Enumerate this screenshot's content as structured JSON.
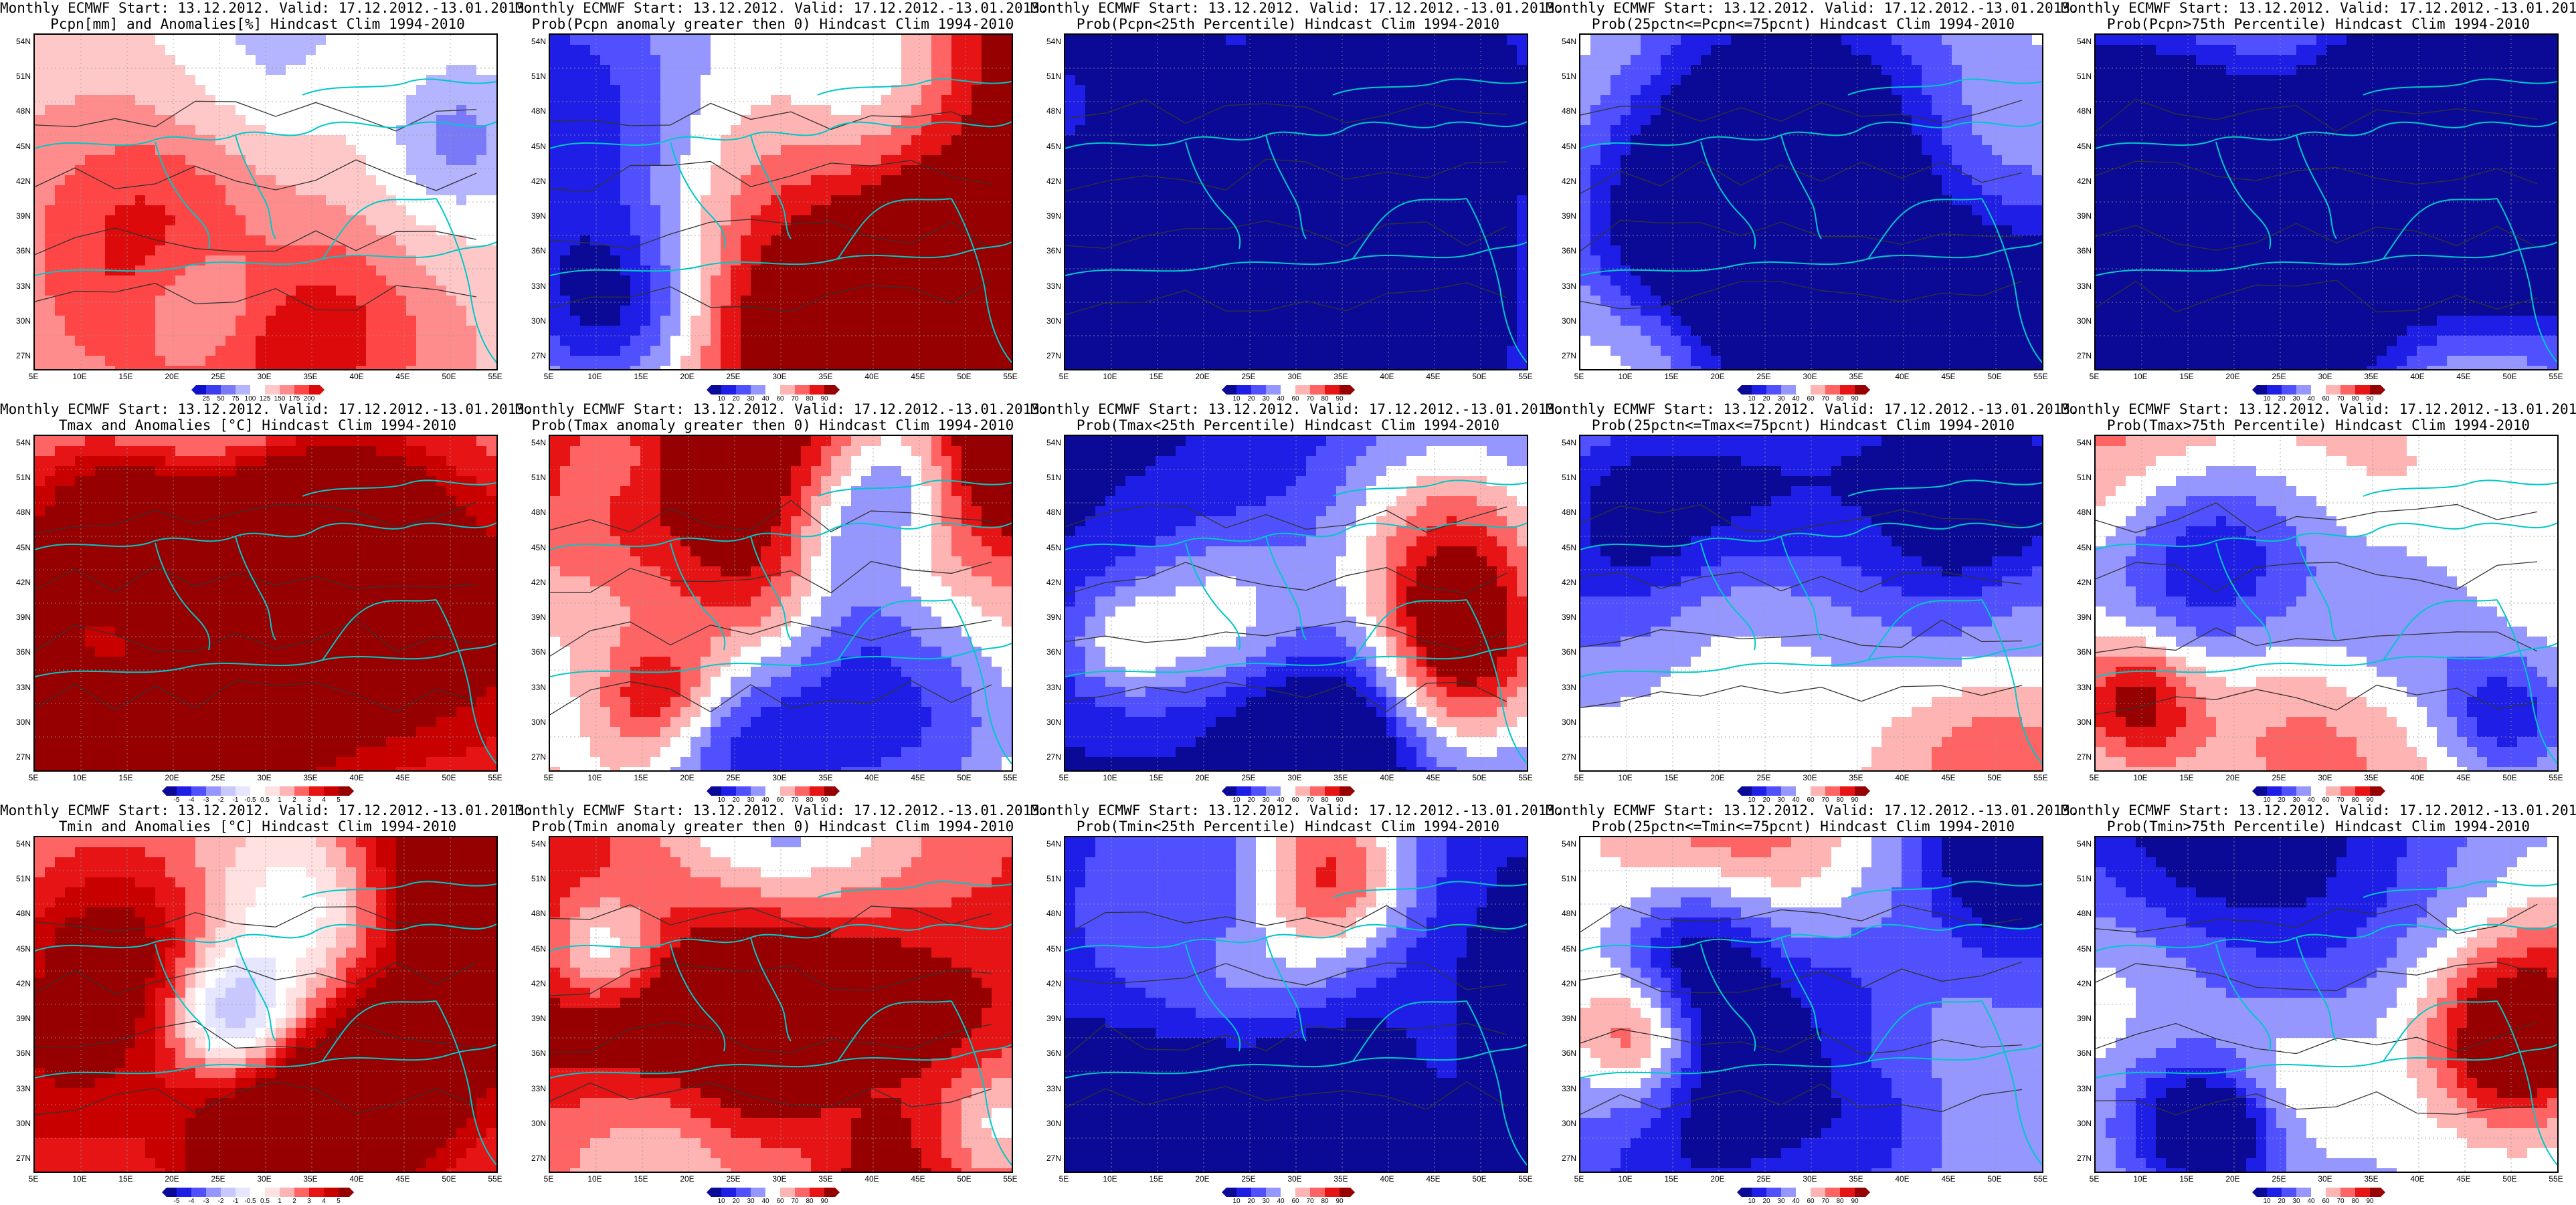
{
  "panels": [
    {
      "line1": "Monthly ECMWF Start: 13.12.2012. Valid: 17.12.2012.-13.01.2013.",
      "line2": "Pcpn[mm] and Anomalies[%] Hindcast Clim 1994-2010",
      "scheme": "anomaly_pct",
      "seed": 11,
      "bias": 0.15,
      "colorbar": {
        "ticks": [
          "25",
          "50",
          "75",
          "100",
          "125",
          "150",
          "175",
          "200"
        ],
        "colors": [
          "#1010c8",
          "#3c3cf0",
          "#7a7af8",
          "#b4b4ff",
          "#ffffff",
          "#ffc8c8",
          "#ff8c8c",
          "#ff4646",
          "#dc0a0a"
        ]
      }
    },
    {
      "line1": "Monthly ECMWF Start: 13.12.2012. Valid: 17.12.2012.-13.01.2013.",
      "line2": "Prob(Pcpn anomaly greater then 0) Hindcast Clim 1994-2010",
      "scheme": "prob",
      "seed": 12,
      "bias": 0.1,
      "colorbar": {
        "ticks": [
          "10",
          "20",
          "30",
          "40",
          "60",
          "70",
          "80",
          "90"
        ],
        "colors": [
          "#0a0a96",
          "#1e1ee6",
          "#5050ff",
          "#9696ff",
          "#ffffff",
          "#ffb4b4",
          "#ff6464",
          "#e61414",
          "#960000"
        ]
      }
    },
    {
      "line1": "Monthly ECMWF Start: 13.12.2012. Valid: 17.12.2012.-13.01.2013.",
      "line2": "Prob(Pcpn<25th Percentile) Hindcast Clim 1994-2010",
      "scheme": "prob",
      "seed": 13,
      "bias": -0.6,
      "colorbar": {
        "ticks": [
          "10",
          "20",
          "30",
          "40",
          "60",
          "70",
          "80",
          "90"
        ],
        "colors": [
          "#0a0a96",
          "#1e1ee6",
          "#5050ff",
          "#9696ff",
          "#ffffff",
          "#ffb4b4",
          "#ff6464",
          "#e61414",
          "#960000"
        ]
      }
    },
    {
      "line1": "Monthly ECMWF Start: 13.12.2012. Valid: 17.12.2012.-13.01.2013.",
      "line2": "Prob(25pctn<=Pcpn<=75pcnt) Hindcast Clim 1994-2010",
      "scheme": "prob",
      "seed": 14,
      "bias": 0.05,
      "colorbar": {
        "ticks": [
          "10",
          "20",
          "30",
          "40",
          "60",
          "70",
          "80",
          "90"
        ],
        "colors": [
          "#0a0a96",
          "#1e1ee6",
          "#5050ff",
          "#9696ff",
          "#ffffff",
          "#ffb4b4",
          "#ff6464",
          "#e61414",
          "#960000"
        ]
      }
    },
    {
      "line1": "Monthly ECMWF Start: 13.12.2012. Valid: 17.12.2012.-13.01.2013.",
      "line2": "Prob(Pcpn>75th Percentile) Hindcast Clim 1994-2010",
      "scheme": "prob",
      "seed": 15,
      "bias": -0.35,
      "colorbar": {
        "ticks": [
          "10",
          "20",
          "30",
          "40",
          "60",
          "70",
          "80",
          "90"
        ],
        "colors": [
          "#0a0a96",
          "#1e1ee6",
          "#5050ff",
          "#9696ff",
          "#ffffff",
          "#ffb4b4",
          "#ff6464",
          "#e61414",
          "#960000"
        ]
      }
    },
    {
      "line1": "Monthly ECMWF Start: 13.12.2012. Valid: 17.12.2012.-13.01.2013.",
      "line2": "Tmax and Anomalies [°C] Hindcast Clim 1994-2010",
      "scheme": "anomaly_c",
      "seed": 21,
      "bias": 0.3,
      "colorbar": {
        "ticks": [
          "-5",
          "-4",
          "-3",
          "-2",
          "-1",
          "-0.5",
          "0.5",
          "1",
          "2",
          "3",
          "4",
          "5"
        ],
        "colors": [
          "#0a0a96",
          "#1e1ee6",
          "#5050ff",
          "#9696ff",
          "#c8c8ff",
          "#e6e6ff",
          "#ffffff",
          "#ffe1e1",
          "#ffb4b4",
          "#ff6464",
          "#e61414",
          "#c80000",
          "#960000"
        ]
      }
    },
    {
      "line1": "Monthly ECMWF Start: 13.12.2012. Valid: 17.12.2012.-13.01.2013.",
      "line2": "Prob(Tmax anomaly greater then 0) Hindcast Clim 1994-2010",
      "scheme": "prob",
      "seed": 22,
      "bias": 0.65,
      "colorbar": {
        "ticks": [
          "10",
          "20",
          "30",
          "40",
          "60",
          "70",
          "80",
          "90"
        ],
        "colors": [
          "#0a0a96",
          "#1e1ee6",
          "#5050ff",
          "#9696ff",
          "#ffffff",
          "#ffb4b4",
          "#ff6464",
          "#e61414",
          "#960000"
        ]
      }
    },
    {
      "line1": "Monthly ECMWF Start: 13.12.2012. Valid: 17.12.2012.-13.01.2013.",
      "line2": "Prob(Tmax<25th Percentile) Hindcast Clim 1994-2010",
      "scheme": "prob",
      "seed": 23,
      "bias": -0.8,
      "colorbar": {
        "ticks": [
          "10",
          "20",
          "30",
          "40",
          "60",
          "70",
          "80",
          "90"
        ],
        "colors": [
          "#0a0a96",
          "#1e1ee6",
          "#5050ff",
          "#9696ff",
          "#ffffff",
          "#ffb4b4",
          "#ff6464",
          "#e61414",
          "#960000"
        ]
      }
    },
    {
      "line1": "Monthly ECMWF Start: 13.12.2012. Valid: 17.12.2012.-13.01.2013.",
      "line2": "Prob(25pctn<=Tmax<=75pcnt) Hindcast Clim 1994-2010",
      "scheme": "prob",
      "seed": 24,
      "bias": 0.0,
      "colorbar": {
        "ticks": [
          "10",
          "20",
          "30",
          "40",
          "60",
          "70",
          "80",
          "90"
        ],
        "colors": [
          "#0a0a96",
          "#1e1ee6",
          "#5050ff",
          "#9696ff",
          "#ffffff",
          "#ffb4b4",
          "#ff6464",
          "#e61414",
          "#960000"
        ]
      }
    },
    {
      "line1": "Monthly ECMWF Start: 13.12.2012. Valid: 17.12.2012.-13.01.2013.",
      "line2": "Prob(Tmax>75th Percentile) Hindcast Clim 1994-2010",
      "scheme": "prob",
      "seed": 25,
      "bias": -0.15,
      "colorbar": {
        "ticks": [
          "10",
          "20",
          "30",
          "40",
          "60",
          "70",
          "80",
          "90"
        ],
        "colors": [
          "#0a0a96",
          "#1e1ee6",
          "#5050ff",
          "#9696ff",
          "#ffffff",
          "#ffb4b4",
          "#ff6464",
          "#e61414",
          "#960000"
        ]
      }
    },
    {
      "line1": "Monthly ECMWF Start: 13.12.2012. Valid: 17.12.2012.-13.01.2013.",
      "line2": "Tmin and Anomalies [°C] Hindcast Clim 1994-2010",
      "scheme": "anomaly_c",
      "seed": 31,
      "bias": 0.35,
      "colorbar": {
        "ticks": [
          "-5",
          "-4",
          "-3",
          "-2",
          "-1",
          "-0.5",
          "0.5",
          "1",
          "2",
          "3",
          "4",
          "5"
        ],
        "colors": [
          "#0a0a96",
          "#1e1ee6",
          "#5050ff",
          "#9696ff",
          "#c8c8ff",
          "#e6e6ff",
          "#ffffff",
          "#ffe1e1",
          "#ffb4b4",
          "#ff6464",
          "#e61414",
          "#c80000",
          "#960000"
        ]
      }
    },
    {
      "line1": "Monthly ECMWF Start: 13.12.2012. Valid: 17.12.2012.-13.01.2013.",
      "line2": "Prob(Tmin anomaly greater then 0) Hindcast Clim 1994-2010",
      "scheme": "prob",
      "seed": 32,
      "bias": 0.6,
      "colorbar": {
        "ticks": [
          "10",
          "20",
          "30",
          "40",
          "60",
          "70",
          "80",
          "90"
        ],
        "colors": [
          "#0a0a96",
          "#1e1ee6",
          "#5050ff",
          "#9696ff",
          "#ffffff",
          "#ffb4b4",
          "#ff6464",
          "#e61414",
          "#960000"
        ]
      }
    },
    {
      "line1": "Monthly ECMWF Start: 13.12.2012. Valid: 17.12.2012.-13.01.2013.",
      "line2": "Prob(Tmin<25th Percentile) Hindcast Clim 1994-2010",
      "scheme": "prob",
      "seed": 33,
      "bias": -0.75,
      "colorbar": {
        "ticks": [
          "10",
          "20",
          "30",
          "40",
          "60",
          "70",
          "80",
          "90"
        ],
        "colors": [
          "#0a0a96",
          "#1e1ee6",
          "#5050ff",
          "#9696ff",
          "#ffffff",
          "#ffb4b4",
          "#ff6464",
          "#e61414",
          "#960000"
        ]
      }
    },
    {
      "line1": "Monthly ECMWF Start: 13.12.2012. Valid: 17.12.2012.-13.01.2013.",
      "line2": "Prob(25pctn<=Tmin<=75pcnt) Hindcast Clim 1994-2010",
      "scheme": "prob",
      "seed": 34,
      "bias": -0.1,
      "colorbar": {
        "ticks": [
          "10",
          "20",
          "30",
          "40",
          "60",
          "70",
          "80",
          "90"
        ],
        "colors": [
          "#0a0a96",
          "#1e1ee6",
          "#5050ff",
          "#9696ff",
          "#ffffff",
          "#ffb4b4",
          "#ff6464",
          "#e61414",
          "#960000"
        ]
      }
    },
    {
      "line1": "Monthly ECMWF Start: 13.12.2012. Valid: 17.12.2012.-13.01.2013.",
      "line2": "Prob(Tmin>75th Percentile) Hindcast Clim 1994-2010",
      "scheme": "prob",
      "seed": 35,
      "bias": -0.1,
      "colorbar": {
        "ticks": [
          "10",
          "20",
          "30",
          "40",
          "60",
          "70",
          "80",
          "90"
        ],
        "colors": [
          "#0a0a96",
          "#1e1ee6",
          "#5050ff",
          "#9696ff",
          "#ffffff",
          "#ffb4b4",
          "#ff6464",
          "#e61414",
          "#960000"
        ]
      }
    }
  ],
  "lat_labels": [
    "54N",
    "51N",
    "48N",
    "45N",
    "42N",
    "39N",
    "36N",
    "33N",
    "30N",
    "27N"
  ],
  "lon_labels": [
    "5E",
    "10E",
    "15E",
    "20E",
    "25E",
    "30E",
    "35E",
    "40E",
    "45E",
    "50E",
    "55E"
  ],
  "coast_color": "#00c8c8",
  "contour_color": "#333333"
}
